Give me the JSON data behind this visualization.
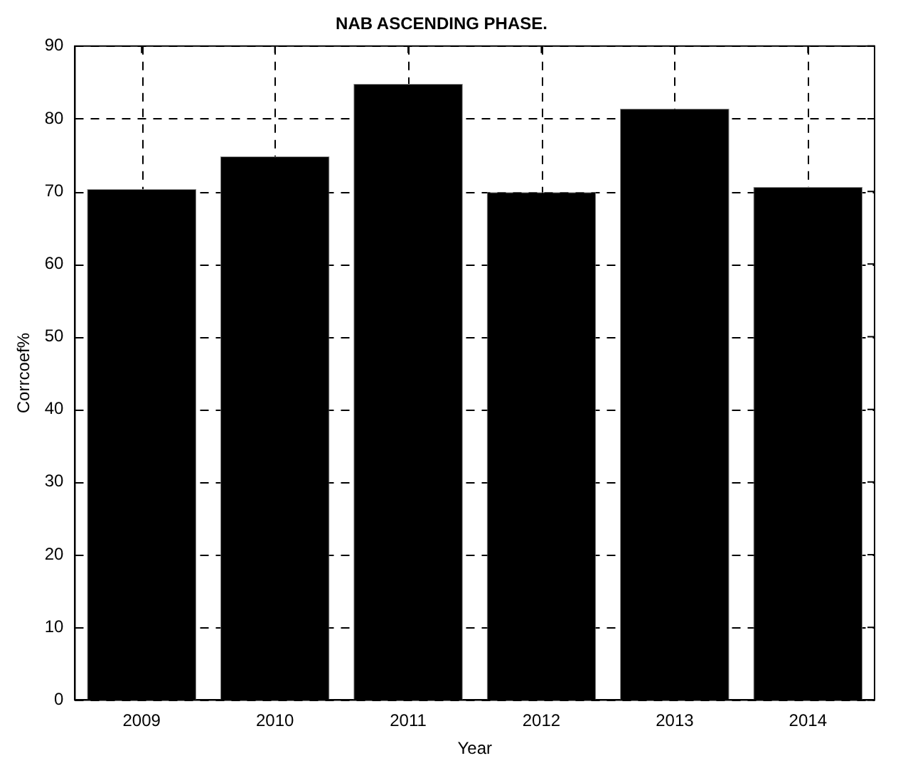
{
  "chart_data": {
    "type": "bar",
    "title": "NAB ASCENDING PHASE.",
    "xlabel": "Year",
    "ylabel": "Corrcoef%",
    "categories": [
      "2009",
      "2010",
      "2011",
      "2012",
      "2013",
      "2014"
    ],
    "values": [
      70.3,
      74.8,
      84.8,
      69.9,
      81.4,
      70.6
    ],
    "color": "#000000",
    "ylim": [
      0,
      90
    ],
    "yticks": [
      0,
      10,
      20,
      30,
      40,
      50,
      60,
      70,
      80,
      90
    ],
    "grid": true,
    "line_style": "dashed"
  }
}
